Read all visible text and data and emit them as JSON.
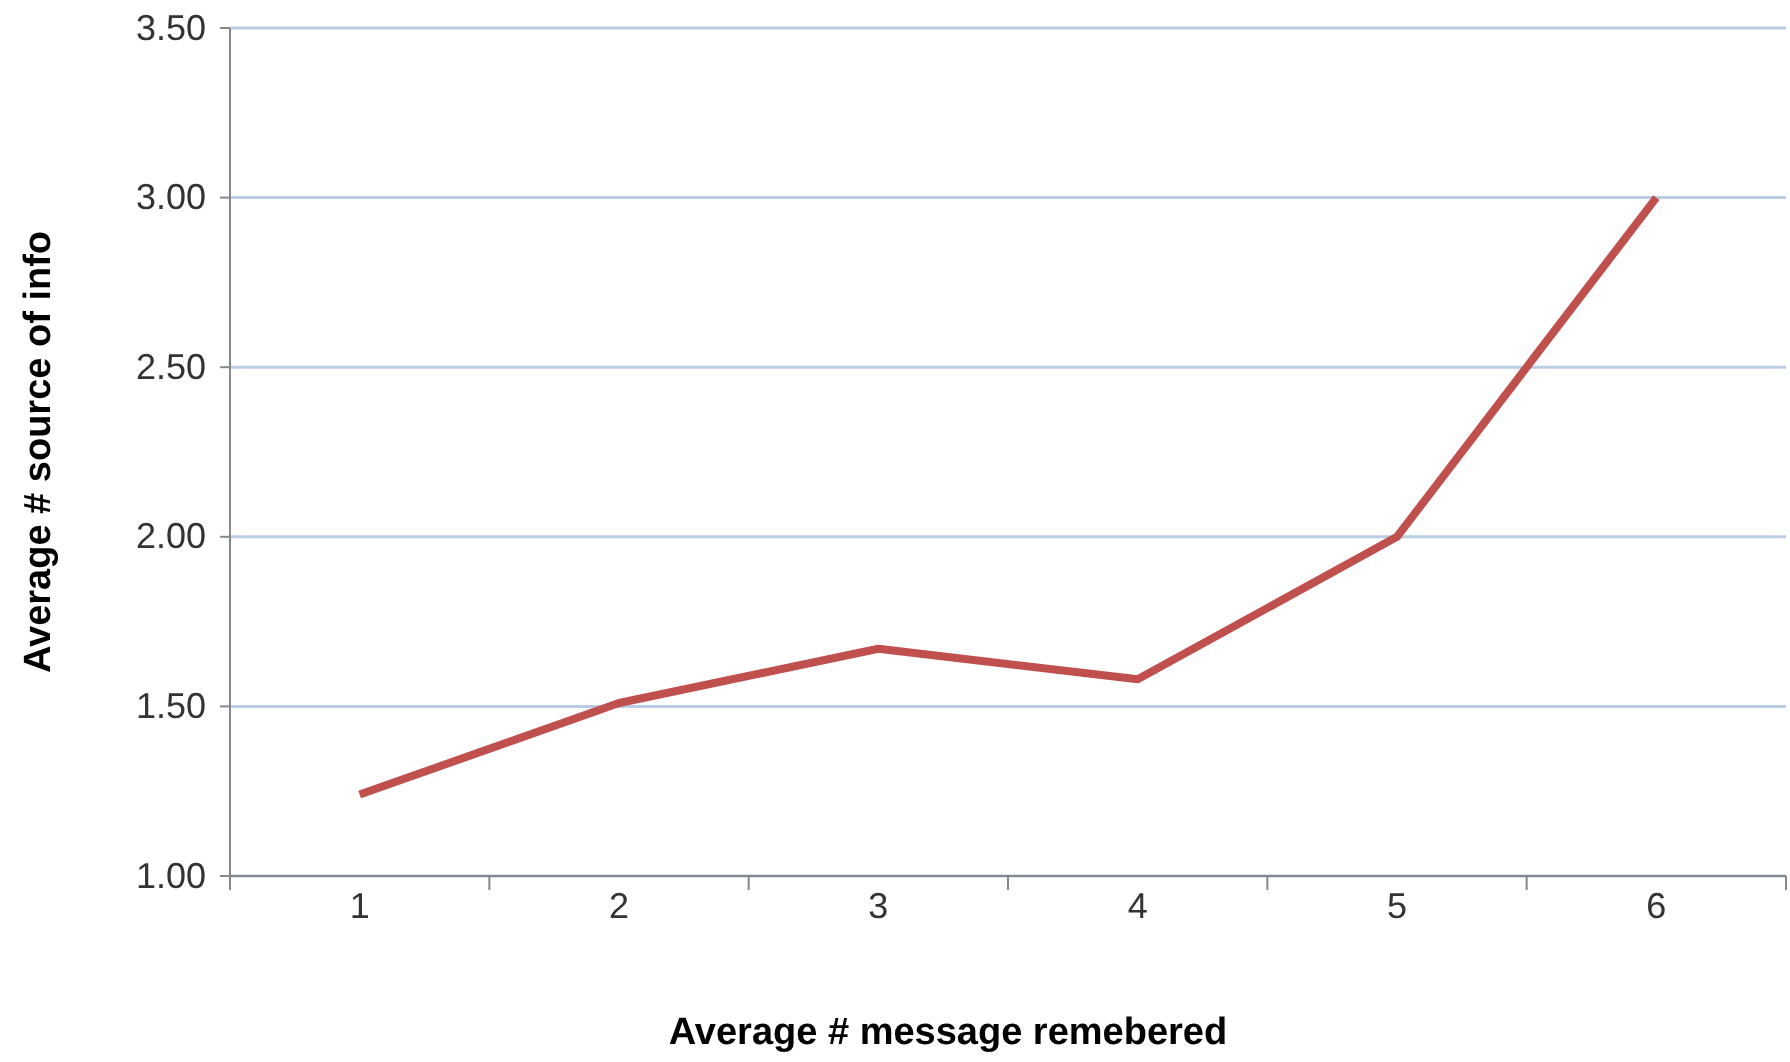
{
  "chart_data": {
    "type": "line",
    "xlabel": "Average # message remebered",
    "ylabel": "Average # source of info",
    "categories": [
      "1",
      "2",
      "3",
      "4",
      "5",
      "6"
    ],
    "series": [
      {
        "color": "#c0504d",
        "values": [
          1.24,
          1.51,
          1.67,
          1.58,
          2.0,
          3.0
        ]
      }
    ],
    "ylim": [
      1,
      3.5
    ],
    "yticks": [
      {
        "value": 1,
        "label": "1.00"
      },
      {
        "value": 1.5,
        "label": "1.50"
      },
      {
        "value": 2,
        "label": "2.00"
      },
      {
        "value": 2.5,
        "label": "2.50"
      },
      {
        "value": 3,
        "label": "3.00"
      },
      {
        "value": 3.5,
        "label": "3.50"
      }
    ],
    "grid": "y",
    "marker": "none",
    "line_style": "solid"
  }
}
